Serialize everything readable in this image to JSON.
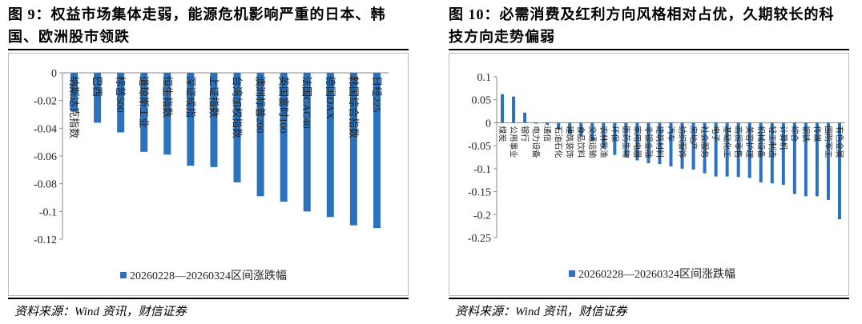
{
  "chart_data": [
    {
      "type": "bar",
      "title": "图 9：权益市场集体走弱，能源危机影响严重的日本、韩国、欧洲股市领跌",
      "categories": [
        "纳斯达克指数",
        "巴西",
        "标普500",
        "道琼斯工业",
        "恒生指数",
        "深证成指",
        "上证指数",
        "台湾加权指数",
        "澳洲标普200",
        "英国富时100",
        "法国CAC40",
        "德国DAX",
        "韩国综合指数",
        "日经225"
      ],
      "series": [
        {
          "name": "20260228—20260324区间涨跌幅",
          "color": "#2a72bd",
          "values": [
            -0.028,
            -0.036,
            -0.043,
            -0.057,
            -0.059,
            -0.067,
            -0.068,
            -0.079,
            -0.089,
            -0.093,
            -0.1,
            -0.104,
            -0.11,
            -0.112
          ]
        }
      ],
      "ylim": [
        -0.12,
        0
      ],
      "yticks": [
        0,
        -0.02,
        -0.04,
        -0.06,
        -0.08,
        -0.1,
        -0.12
      ],
      "source": "资料来源：Wind 资讯，财信证券"
    },
    {
      "type": "bar",
      "title": "图 10：必需消费及红利方向风格相对占优，久期较长的科技方向走势偏弱",
      "categories": [
        "煤炭",
        "公用事业",
        "银行",
        "电力设备",
        "通信",
        "石油石化",
        "建筑装饰",
        "食品饮料",
        "交通运输",
        "农林牧渔",
        "环保",
        "医药生物",
        "家用电器",
        "非银金融",
        "建筑材料",
        "汽车",
        "纺织服饰",
        "房地产",
        "社会服务",
        "电子",
        "基础化工",
        "商贸零售",
        "美容护理",
        "机械设备",
        "轻工制造",
        "计算机",
        "综合",
        "钢铁",
        "传媒",
        "国防军工",
        "有色金属"
      ],
      "series": [
        {
          "name": "20260228—20260324区间涨跌幅",
          "color": "#2a72bd",
          "values": [
            0.062,
            0.057,
            0.022,
            -0.002,
            -0.005,
            -0.015,
            -0.025,
            -0.03,
            -0.04,
            -0.055,
            -0.07,
            -0.075,
            -0.082,
            -0.088,
            -0.09,
            -0.095,
            -0.1,
            -0.102,
            -0.11,
            -0.117,
            -0.117,
            -0.118,
            -0.12,
            -0.13,
            -0.132,
            -0.135,
            -0.155,
            -0.16,
            -0.16,
            -0.168,
            -0.21
          ]
        }
      ],
      "ylim": [
        -0.25,
        0.1
      ],
      "yticks": [
        0.1,
        0.05,
        0,
        -0.05,
        -0.1,
        -0.15,
        -0.2,
        -0.25
      ],
      "source": "资料来源：Wind 资讯，财信证券"
    }
  ]
}
